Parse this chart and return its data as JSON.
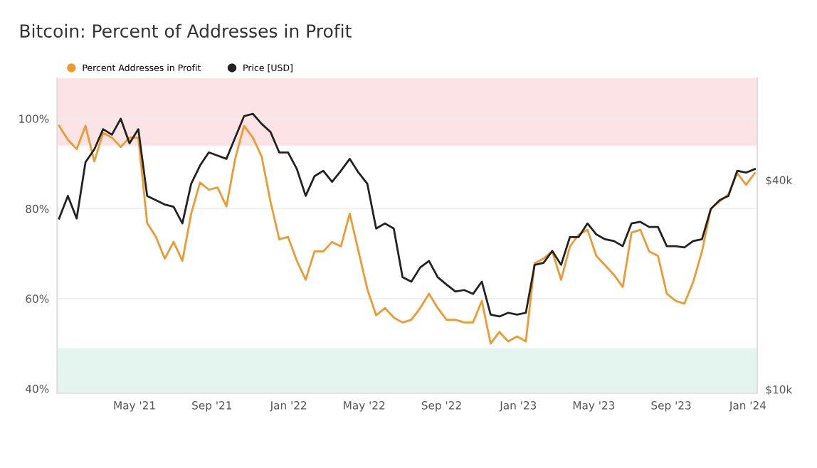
{
  "chart_data": {
    "type": "line",
    "title": "Bitcoin: Percent of Addresses in Profit",
    "x": [
      "2021-01-01",
      "2021-01-15",
      "2021-01-29",
      "2021-02-12",
      "2021-02-26",
      "2021-03-12",
      "2021-03-26",
      "2021-04-09",
      "2021-04-23",
      "2021-05-07",
      "2021-05-21",
      "2021-06-04",
      "2021-06-18",
      "2021-07-02",
      "2021-07-16",
      "2021-07-30",
      "2021-08-13",
      "2021-08-27",
      "2021-09-10",
      "2021-09-24",
      "2021-10-08",
      "2021-10-22",
      "2021-11-05",
      "2021-11-19",
      "2021-12-03",
      "2021-12-17",
      "2021-12-31",
      "2022-01-14",
      "2022-01-28",
      "2022-02-11",
      "2022-02-25",
      "2022-03-11",
      "2022-03-25",
      "2022-04-08",
      "2022-04-22",
      "2022-05-06",
      "2022-05-20",
      "2022-06-03",
      "2022-06-17",
      "2022-07-01",
      "2022-07-15",
      "2022-07-29",
      "2022-08-12",
      "2022-08-26",
      "2022-09-09",
      "2022-09-23",
      "2022-10-07",
      "2022-10-21",
      "2022-11-04",
      "2022-11-18",
      "2022-12-02",
      "2022-12-16",
      "2022-12-30",
      "2023-01-13",
      "2023-01-27",
      "2023-02-10",
      "2023-02-24",
      "2023-03-10",
      "2023-03-24",
      "2023-04-07",
      "2023-04-21",
      "2023-05-05",
      "2023-05-19",
      "2023-06-02",
      "2023-06-16",
      "2023-06-30",
      "2023-07-14",
      "2023-07-28",
      "2023-08-11",
      "2023-08-25",
      "2023-09-08",
      "2023-09-22",
      "2023-10-06",
      "2023-10-20",
      "2023-11-03",
      "2023-11-17",
      "2023-12-01",
      "2023-12-15",
      "2023-12-29",
      "2024-01-12"
    ],
    "series": [
      {
        "name": "Percent Addresses in Profit",
        "color": "#ee9a2e",
        "values": [
          98.4,
          95.3,
          93.2,
          98.4,
          90.5,
          96.8,
          95.8,
          93.7,
          95.8,
          95.8,
          76.8,
          73.7,
          68.9,
          72.6,
          68.4,
          78.9,
          85.8,
          84.2,
          84.7,
          80.5,
          91.1,
          98.4,
          95.8,
          91.6,
          81.6,
          73.2,
          73.7,
          68.4,
          64.2,
          70.5,
          70.5,
          72.6,
          71.6,
          78.9,
          70.5,
          62.1,
          56.3,
          57.9,
          55.8,
          54.7,
          55.3,
          57.9,
          61.1,
          57.9,
          55.3,
          55.3,
          54.7,
          54.7,
          59.5,
          50.0,
          52.6,
          50.5,
          51.6,
          50.5,
          67.9,
          68.9,
          70.5,
          64.2,
          71.6,
          74.2,
          75.3,
          69.5,
          67.4,
          65.3,
          62.6,
          74.7,
          75.3,
          70.5,
          69.5,
          61.1,
          59.5,
          58.9,
          63.7,
          70.5,
          80.0,
          81.6,
          83.2,
          87.9,
          85.3,
          87.9
        ]
      },
      {
        "name": "Price [USD]",
        "color": "#222222",
        "axis": "y2",
        "values": [
          31000,
          36000,
          31000,
          45000,
          49000,
          56000,
          54000,
          60000,
          51000,
          56000,
          36000,
          35000,
          34000,
          33500,
          30000,
          39000,
          44000,
          48000,
          47000,
          46000,
          53000,
          61000,
          62000,
          58000,
          55000,
          48000,
          48000,
          43000,
          36000,
          41000,
          42500,
          39500,
          42500,
          46000,
          42000,
          39000,
          29000,
          30000,
          29000,
          21000,
          20400,
          22400,
          23400,
          21000,
          20000,
          19100,
          19300,
          18800,
          20400,
          16400,
          16200,
          16600,
          16400,
          16600,
          22800,
          23100,
          25000,
          22800,
          27400,
          27400,
          30000,
          27900,
          27000,
          26700,
          25800,
          30000,
          30300,
          29300,
          29300,
          25800,
          25800,
          25600,
          26700,
          27000,
          33000,
          35000,
          36000,
          42500,
          42000,
          43000
        ]
      }
    ],
    "xlim": [
      "2020-12-29",
      "2024-01-16"
    ],
    "xticks": [
      {
        "value": "2021-05-01",
        "label": "May '21"
      },
      {
        "value": "2021-09-01",
        "label": "Sep '21"
      },
      {
        "value": "2022-01-01",
        "label": "Jan '22"
      },
      {
        "value": "2022-05-01",
        "label": "May '22"
      },
      {
        "value": "2022-09-01",
        "label": "Sep '22"
      },
      {
        "value": "2023-01-01",
        "label": "Jan '23"
      },
      {
        "value": "2023-05-01",
        "label": "May '23"
      },
      {
        "value": "2023-09-01",
        "label": "Sep '23"
      },
      {
        "value": "2024-01-01",
        "label": "Jan '24"
      }
    ],
    "ylim": [
      39,
      109
    ],
    "yticks": [
      {
        "value": 40,
        "label": "40%"
      },
      {
        "value": 60,
        "label": "60%"
      },
      {
        "value": 80,
        "label": "80%"
      },
      {
        "value": 100,
        "label": "100%"
      }
    ],
    "y2lim": [
      9750,
      78500
    ],
    "y2ticks": [
      {
        "value": 10000,
        "label": "$10k"
      },
      {
        "value": 40000,
        "label": "$40k"
      }
    ],
    "log": "y2",
    "bands": [
      {
        "axis": "y",
        "from": 94,
        "to": 109,
        "color": "#fbe3e6"
      },
      {
        "axis": "y",
        "from": 39,
        "to": 49,
        "color": "#e3f5ee"
      }
    ],
    "grid": "y",
    "legend": "top left"
  }
}
